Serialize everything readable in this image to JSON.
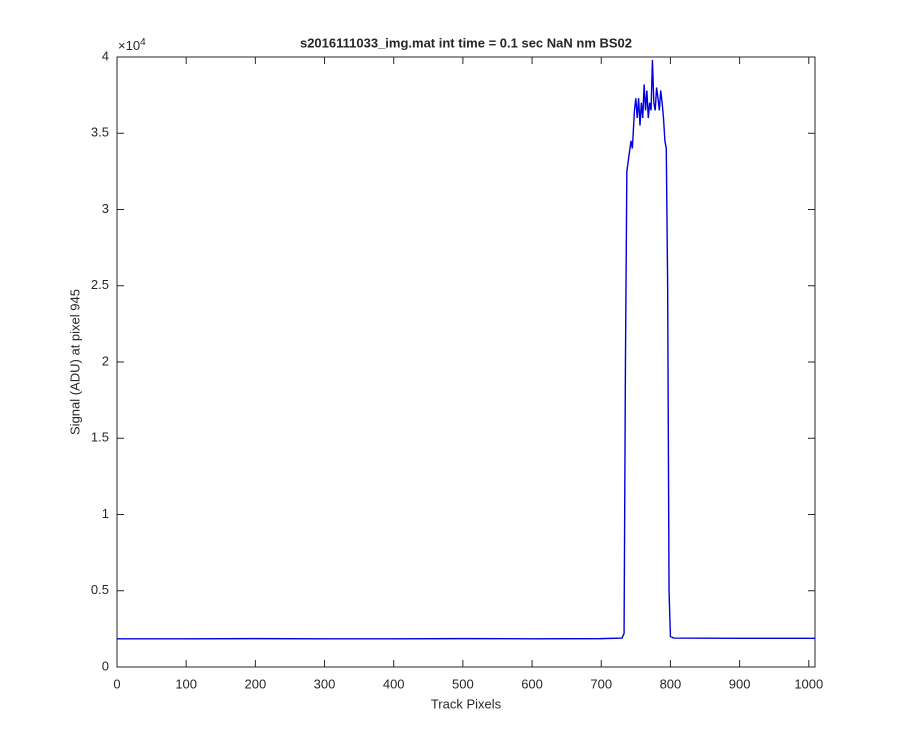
{
  "chart_data": {
    "type": "line",
    "title": "s2016111033_img.mat int time = 0.1 sec  NaN nm BS02",
    "x_label": "Track Pixels",
    "y_label": "Signal (ADU) at pixel 945",
    "y_multiplier_base": "×10",
    "y_multiplier_exponent": "4",
    "xlim": [
      0,
      1009
    ],
    "ylim": [
      0,
      40000
    ],
    "xticks": [
      0,
      100,
      200,
      300,
      400,
      500,
      600,
      700,
      800,
      900,
      1000
    ],
    "yticks": [
      {
        "value": 0,
        "label": "0"
      },
      {
        "value": 5000,
        "label": "0.5"
      },
      {
        "value": 10000,
        "label": "1"
      },
      {
        "value": 15000,
        "label": "1.5"
      },
      {
        "value": 20000,
        "label": "2"
      },
      {
        "value": 25000,
        "label": "2.5"
      },
      {
        "value": 30000,
        "label": "3"
      },
      {
        "value": 35000,
        "label": "3.5"
      },
      {
        "value": 40000,
        "label": "4"
      }
    ],
    "grid": false,
    "x": [
      0,
      100,
      200,
      300,
      400,
      500,
      600,
      700,
      730,
      733,
      735,
      737,
      740,
      743,
      745,
      748,
      750,
      752,
      754,
      756,
      758,
      760,
      762,
      764,
      766,
      768,
      770,
      772,
      774,
      776,
      778,
      780,
      782,
      784,
      786,
      788,
      790,
      792,
      794,
      796,
      798,
      800,
      805,
      900,
      1009
    ],
    "series": [
      {
        "color": "#0000e0",
        "values": [
          1850,
          1850,
          1860,
          1850,
          1850,
          1860,
          1850,
          1860,
          1900,
          2200,
          20000,
          32500,
          33500,
          34500,
          34000,
          36500,
          37300,
          36000,
          37300,
          35500,
          37000,
          36000,
          38200,
          36500,
          37800,
          36000,
          37000,
          36500,
          39800,
          37000,
          36500,
          38000,
          37300,
          36500,
          37800,
          37000,
          36000,
          34500,
          34000,
          25000,
          5000,
          2000,
          1900,
          1880,
          1880
        ]
      }
    ]
  }
}
